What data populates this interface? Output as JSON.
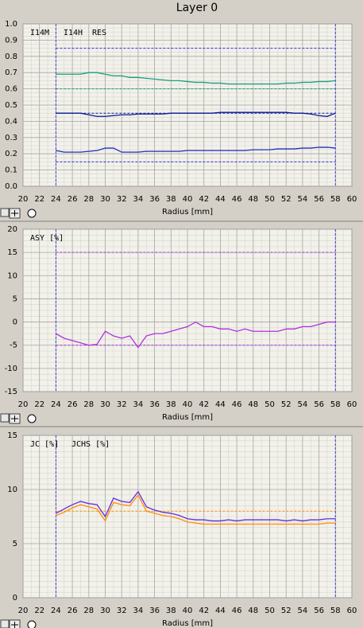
{
  "window_title": "Layer 0",
  "chart_data": [
    {
      "type": "line",
      "xlabel": "Radius [mm]",
      "x": [
        24,
        25,
        26,
        27,
        28,
        29,
        30,
        31,
        32,
        33,
        34,
        35,
        36,
        37,
        38,
        39,
        40,
        41,
        42,
        43,
        44,
        45,
        46,
        47,
        48,
        49,
        50,
        51,
        52,
        53,
        54,
        55,
        56,
        57,
        58
      ],
      "xlim": [
        20,
        60
      ],
      "xticks": [
        20,
        22,
        24,
        26,
        28,
        30,
        32,
        34,
        36,
        38,
        40,
        42,
        44,
        46,
        48,
        50,
        52,
        54,
        56,
        58,
        60
      ],
      "ylim": [
        0,
        1
      ],
      "yticks": [
        {
          "value": 0,
          "label": "0.0"
        },
        0.1,
        0.2,
        0.3,
        0.4,
        0.5,
        0.6,
        0.7,
        0.8,
        0.9,
        {
          "value": 1,
          "label": "1.0"
        }
      ],
      "grid": true,
      "series": [
        {
          "name": "I14M",
          "color": "#1aa080",
          "values": [
            0.69,
            0.69,
            0.69,
            0.69,
            0.7,
            0.7,
            0.69,
            0.68,
            0.68,
            0.67,
            0.67,
            0.665,
            0.66,
            0.655,
            0.65,
            0.65,
            0.645,
            0.64,
            0.64,
            0.635,
            0.635,
            0.63,
            0.63,
            0.63,
            0.63,
            0.63,
            0.63,
            0.63,
            0.635,
            0.635,
            0.64,
            0.64,
            0.645,
            0.645,
            0.65
          ]
        },
        {
          "name": "I14H",
          "color": "#0a1a9a",
          "values": [
            0.45,
            0.45,
            0.45,
            0.45,
            0.44,
            0.43,
            0.43,
            0.435,
            0.44,
            0.44,
            0.445,
            0.445,
            0.445,
            0.445,
            0.45,
            0.45,
            0.45,
            0.45,
            0.45,
            0.45,
            0.455,
            0.455,
            0.455,
            0.455,
            0.455,
            0.455,
            0.455,
            0.455,
            0.455,
            0.45,
            0.45,
            0.445,
            0.435,
            0.43,
            0.45
          ]
        },
        {
          "name": "RES",
          "color": "#2030c0",
          "values": [
            0.22,
            0.21,
            0.21,
            0.21,
            0.215,
            0.22,
            0.235,
            0.235,
            0.21,
            0.21,
            0.21,
            0.215,
            0.215,
            0.215,
            0.215,
            0.215,
            0.22,
            0.22,
            0.22,
            0.22,
            0.22,
            0.22,
            0.22,
            0.22,
            0.225,
            0.225,
            0.225,
            0.23,
            0.23,
            0.23,
            0.235,
            0.235,
            0.24,
            0.24,
            0.235
          ]
        }
      ],
      "reference_lines": [
        {
          "value": 0.85,
          "color": "#3030e0"
        },
        {
          "value": 0.6,
          "color": "#1aa080"
        },
        {
          "value": 0.45,
          "color": "#0a1a9a"
        },
        {
          "value": 0.15,
          "color": "#3030e0"
        }
      ],
      "vlines": [
        24,
        58
      ]
    },
    {
      "type": "line",
      "xlabel": "Radius [mm]",
      "x": [
        24,
        25,
        26,
        27,
        28,
        29,
        30,
        31,
        32,
        33,
        34,
        35,
        36,
        37,
        38,
        39,
        40,
        41,
        42,
        43,
        44,
        45,
        46,
        47,
        48,
        49,
        50,
        51,
        52,
        53,
        54,
        55,
        56,
        57,
        58
      ],
      "xlim": [
        20,
        60
      ],
      "xticks": [
        20,
        22,
        24,
        26,
        28,
        30,
        32,
        34,
        36,
        38,
        40,
        42,
        44,
        46,
        48,
        50,
        52,
        54,
        56,
        58,
        60
      ],
      "ylim": [
        -15,
        20
      ],
      "yticks": [
        -15,
        -10,
        -5,
        0,
        5,
        10,
        15,
        20
      ],
      "grid": true,
      "series": [
        {
          "name": "ASY [%]",
          "color": "#b030e0",
          "values": [
            -2.5,
            -3.5,
            -4,
            -4.5,
            -5,
            -4.8,
            -2,
            -3,
            -3.5,
            -3,
            -5.5,
            -3,
            -2.5,
            -2.5,
            -2,
            -1.5,
            -1,
            0,
            -1,
            -1,
            -1.5,
            -1.5,
            -2,
            -1.5,
            -2,
            -2,
            -2,
            -2,
            -1.5,
            -1.5,
            -1,
            -1,
            -0.5,
            0,
            0
          ]
        }
      ],
      "reference_lines": [
        {
          "value": 15,
          "color": "#b030e0"
        },
        {
          "value": -5,
          "color": "#b030e0"
        }
      ],
      "vlines": [
        24,
        58
      ]
    },
    {
      "type": "line",
      "xlabel": "Radius [mm]",
      "x": [
        24,
        25,
        26,
        27,
        28,
        29,
        30,
        31,
        32,
        33,
        34,
        35,
        36,
        37,
        38,
        39,
        40,
        41,
        42,
        43,
        44,
        45,
        46,
        47,
        48,
        49,
        50,
        51,
        52,
        53,
        54,
        55,
        56,
        57,
        58
      ],
      "xlim": [
        20,
        60
      ],
      "xticks": [
        20,
        22,
        24,
        26,
        28,
        30,
        32,
        34,
        36,
        38,
        40,
        42,
        44,
        46,
        48,
        50,
        52,
        54,
        56,
        58,
        60
      ],
      "ylim": [
        0,
        15
      ],
      "yticks": [
        0,
        5,
        10,
        15
      ],
      "grid": true,
      "series": [
        {
          "name": "JC [%]",
          "color": "#ff9000",
          "values": [
            7.6,
            7.9,
            8.3,
            8.6,
            8.4,
            8.2,
            7.1,
            8.8,
            8.6,
            8.5,
            9.5,
            8.0,
            7.8,
            7.6,
            7.5,
            7.3,
            7.0,
            6.9,
            6.8,
            6.8,
            6.8,
            6.8,
            6.8,
            6.8,
            6.8,
            6.8,
            6.8,
            6.8,
            6.8,
            6.8,
            6.8,
            6.8,
            6.8,
            6.9,
            6.9
          ]
        },
        {
          "name": "JCHS [%]",
          "color": "#6030e0",
          "values": [
            7.8,
            8.2,
            8.6,
            8.9,
            8.7,
            8.6,
            7.5,
            9.2,
            8.9,
            8.8,
            9.8,
            8.4,
            8.1,
            7.9,
            7.8,
            7.6,
            7.3,
            7.2,
            7.2,
            7.1,
            7.1,
            7.2,
            7.1,
            7.2,
            7.2,
            7.2,
            7.2,
            7.2,
            7.1,
            7.2,
            7.1,
            7.2,
            7.2,
            7.3,
            7.3
          ]
        }
      ],
      "reference_lines": [
        {
          "value": 8,
          "color": "#ff9000"
        }
      ],
      "vlines": [
        24,
        58
      ]
    }
  ]
}
